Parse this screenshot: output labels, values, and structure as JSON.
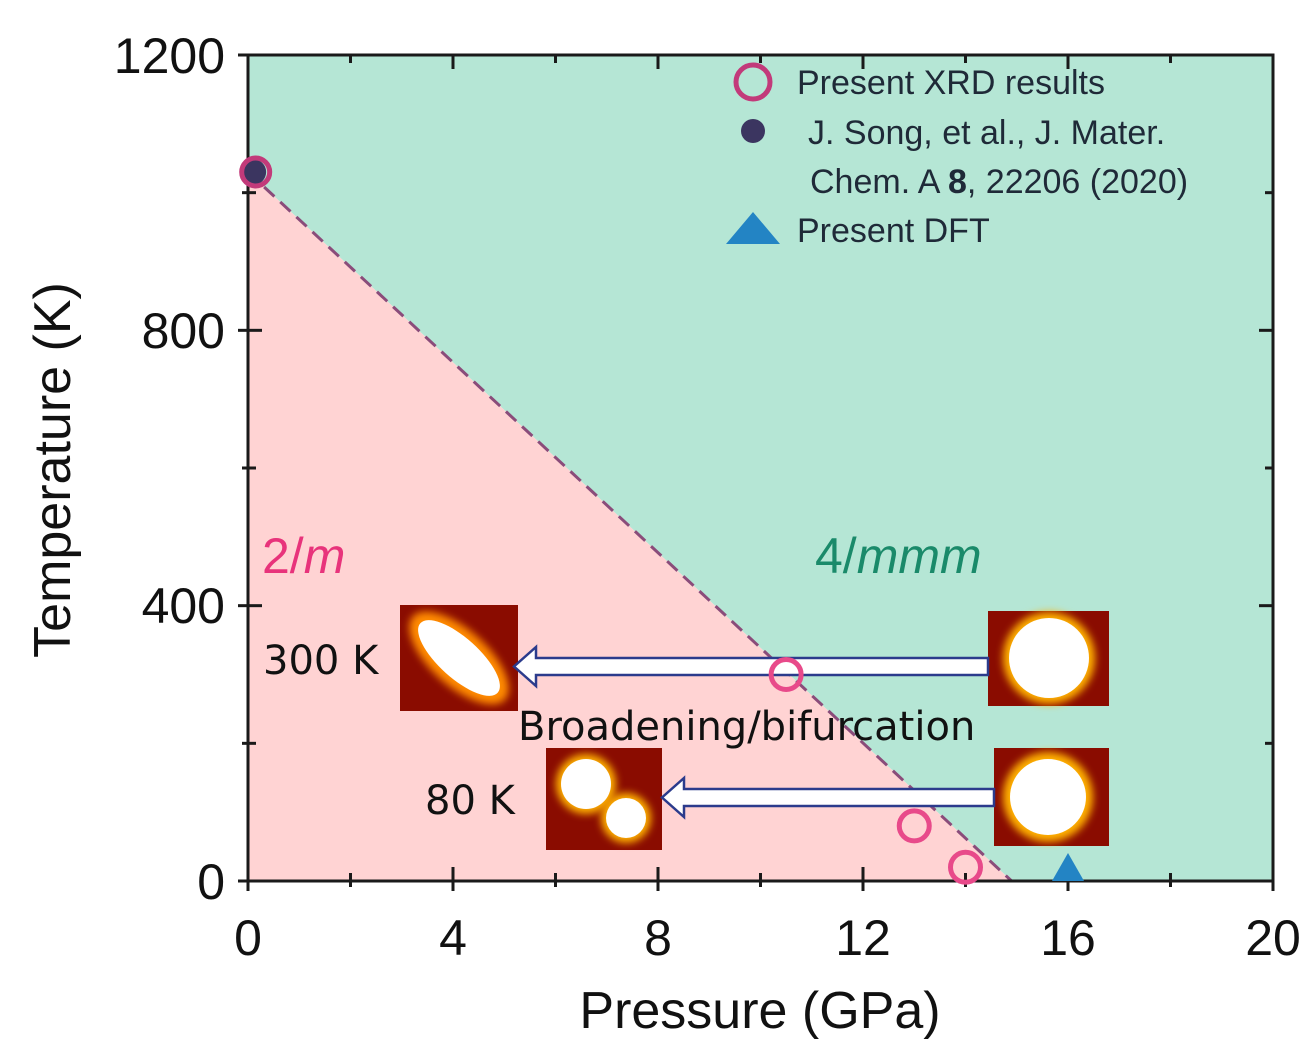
{
  "chart_data": {
    "type": "scatter",
    "title": "",
    "xlabel": "Pressure (GPa)",
    "ylabel": "Temperature (K)",
    "xlim": [
      0,
      20
    ],
    "ylim": [
      0,
      1200
    ],
    "x_ticks": [
      0,
      4,
      8,
      12,
      16,
      20
    ],
    "y_ticks": [
      0,
      400,
      800,
      1200
    ],
    "x_tick_labels": [
      "0",
      "4",
      "8",
      "12",
      "16",
      "20"
    ],
    "y_tick_labels": [
      "0",
      "400",
      "800",
      "1200"
    ],
    "phase_boundary": {
      "x": [
        0,
        14.9
      ],
      "y": [
        1030,
        0
      ],
      "style": "dashed"
    },
    "regions": [
      {
        "label": "2/m",
        "symbol": "2/",
        "italic_part": "m",
        "color": "#ffd3d3",
        "text_color": "#e8337b"
      },
      {
        "label": "4/mmm",
        "symbol": "4/",
        "italic_part": "mmm",
        "color": "#b5e6d5",
        "text_color": "#1a8a6a"
      }
    ],
    "series": [
      {
        "name": "Present XRD results",
        "marker": "open-circle",
        "color": "#e84a8a",
        "points": [
          {
            "x": 10.5,
            "y": 300
          },
          {
            "x": 13.0,
            "y": 80
          },
          {
            "x": 14.0,
            "y": 20
          }
        ]
      },
      {
        "name": "J. Song, et al., J. Mater. Chem. A 8, 22206 (2020)",
        "marker": "filled-circle",
        "color": "#3b3560",
        "points": [
          {
            "x": 0.1,
            "y": 1030
          }
        ]
      },
      {
        "name": "Present DFT",
        "marker": "triangle",
        "color": "#2384c4",
        "points": [
          {
            "x": 16.0,
            "y": 0
          }
        ]
      }
    ],
    "legend": {
      "position": "top-right",
      "entries": [
        {
          "lines": [
            "Present XRD results"
          ]
        },
        {
          "lines": [
            "J. Song, et al., J. Mater.",
            "Chem. A 8, 22206 (2020)"
          ],
          "bold_token": "8"
        },
        {
          "lines": [
            "Present DFT"
          ]
        }
      ]
    },
    "annotations": [
      {
        "text": "300 K"
      },
      {
        "text": "80 K"
      },
      {
        "text": "Broadening/bifurcation"
      }
    ],
    "extra_points": [
      {
        "series": "Present XRD results",
        "x": 0.15,
        "y": 1030
      }
    ]
  }
}
